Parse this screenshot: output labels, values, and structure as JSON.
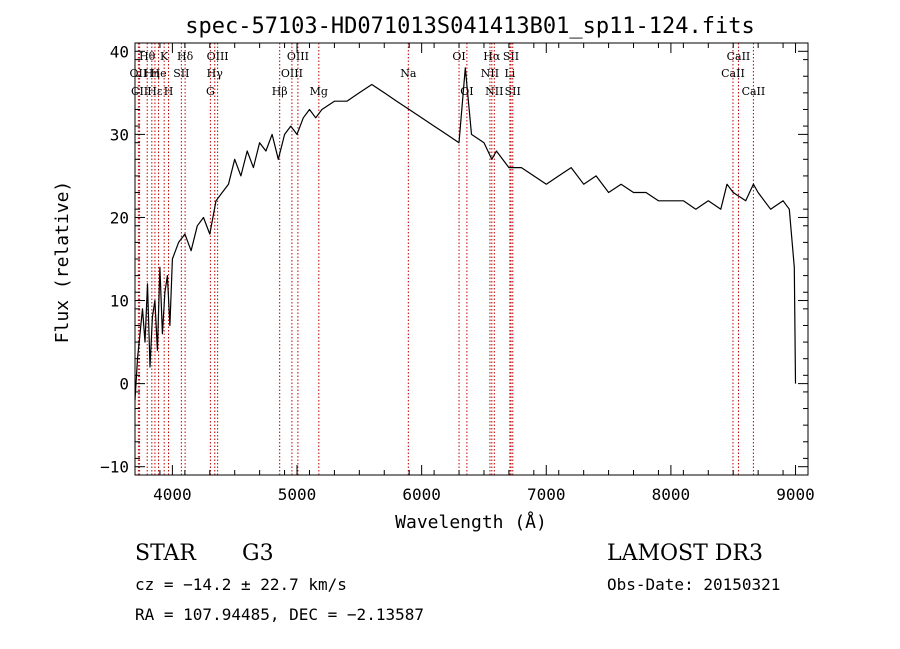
{
  "chart_data": {
    "type": "line",
    "title": "spec-57103-HD071013S041413B01_sp11-124.fits",
    "xlabel": "Wavelength (Å)",
    "ylabel": "Flux (relative)",
    "xlim": [
      3700,
      9100
    ],
    "ylim": [
      -11,
      41
    ],
    "xticks": [
      4000,
      5000,
      6000,
      7000,
      8000,
      9000
    ],
    "xtick_labels": [
      "4000",
      "5000",
      "6000",
      "7000",
      "8000",
      "9000"
    ],
    "yticks": [
      -10,
      0,
      10,
      20,
      30,
      40
    ],
    "ytick_labels": [
      "−10",
      "0",
      "10",
      "20",
      "30",
      "40"
    ],
    "series": [
      {
        "name": "spectrum",
        "x": [
          3700,
          3720,
          3740,
          3760,
          3780,
          3800,
          3820,
          3840,
          3860,
          3880,
          3900,
          3920,
          3940,
          3960,
          3980,
          4000,
          4050,
          4100,
          4150,
          4200,
          4250,
          4300,
          4350,
          4400,
          4450,
          4500,
          4550,
          4600,
          4650,
          4700,
          4750,
          4800,
          4850,
          4900,
          4950,
          5000,
          5050,
          5100,
          5150,
          5200,
          5300,
          5400,
          5500,
          5600,
          5700,
          5800,
          5900,
          6000,
          6100,
          6200,
          6300,
          6350,
          6400,
          6500,
          6563,
          6600,
          6700,
          6800,
          6900,
          7000,
          7100,
          7200,
          7300,
          7400,
          7500,
          7600,
          7700,
          7800,
          7900,
          8000,
          8100,
          8200,
          8300,
          8400,
          8450,
          8500,
          8600,
          8662,
          8700,
          8800,
          8900,
          8950,
          8990,
          9000
        ],
        "y": [
          -2,
          3,
          6,
          9,
          5,
          12,
          2,
          8,
          10,
          4,
          14,
          6,
          11,
          13,
          7,
          15,
          17,
          18,
          16,
          19,
          20,
          18,
          22,
          23,
          24,
          27,
          25,
          28,
          26,
          29,
          28,
          30,
          27,
          30,
          31,
          30,
          32,
          33,
          32,
          33,
          34,
          34,
          35,
          36,
          35,
          34,
          33,
          32,
          31,
          30,
          29,
          38,
          30,
          29,
          27,
          28,
          26,
          26,
          25,
          24,
          25,
          26,
          24,
          25,
          23,
          24,
          23,
          23,
          22,
          22,
          22,
          21,
          22,
          21,
          24,
          23,
          22,
          24,
          23,
          21,
          22,
          21,
          14,
          0
        ]
      }
    ],
    "lines": [
      {
        "label": "Hθ",
        "x": 3798,
        "row": 0
      },
      {
        "label": "OII",
        "x": 3727,
        "row": 1
      },
      {
        "label": "CII",
        "x": 3737,
        "row": 2
      },
      {
        "label": "Hη",
        "x": 3835,
        "row": 1
      },
      {
        "label": "He",
        "x": 3889,
        "row": 1
      },
      {
        "label": "K",
        "x": 3934,
        "row": 0
      },
      {
        "label": "H",
        "x": 3969,
        "row": 2
      },
      {
        "label": "Hδ",
        "x": 4102,
        "row": 0
      },
      {
        "label": "SII",
        "x": 4072,
        "row": 1
      },
      {
        "label": "Hε",
        "x": 3860,
        "row": 2
      },
      {
        "label": "OIII",
        "x": 4363,
        "row": 0
      },
      {
        "label": "Hγ",
        "x": 4340,
        "row": 1
      },
      {
        "label": "G",
        "x": 4305,
        "row": 2
      },
      {
        "label": "Hβ",
        "x": 4861,
        "row": 2
      },
      {
        "label": "OIII",
        "x": 5007,
        "row": 0
      },
      {
        "label": "OIII",
        "x": 4959,
        "row": 1
      },
      {
        "label": "Mg",
        "x": 5175,
        "row": 2
      },
      {
        "label": "Na",
        "x": 5893,
        "row": 1
      },
      {
        "label": "OI",
        "x": 6300,
        "row": 0
      },
      {
        "label": "OI",
        "x": 6363,
        "row": 2
      },
      {
        "label": "Hα",
        "x": 6563,
        "row": 0
      },
      {
        "label": "NII",
        "x": 6548,
        "row": 1
      },
      {
        "label": "NII",
        "x": 6583,
        "row": 2
      },
      {
        "label": "SII",
        "x": 6717,
        "row": 0
      },
      {
        "label": "Li",
        "x": 6708,
        "row": 1
      },
      {
        "label": "SII",
        "x": 6731,
        "row": 2
      },
      {
        "label": "CaII",
        "x": 8542,
        "row": 0
      },
      {
        "label": "CaII",
        "x": 8498,
        "row": 1
      },
      {
        "label": "CaII",
        "x": 8662,
        "row": 2
      }
    ]
  },
  "info": {
    "object_type": "STAR",
    "subclass": "G3",
    "survey": "LAMOST DR3",
    "cz": "cz = −14.2 ± 22.7 km/s",
    "obs_date": "Obs-Date: 20150321",
    "coords": "RA = 107.94485, DEC =  −2.13587"
  }
}
